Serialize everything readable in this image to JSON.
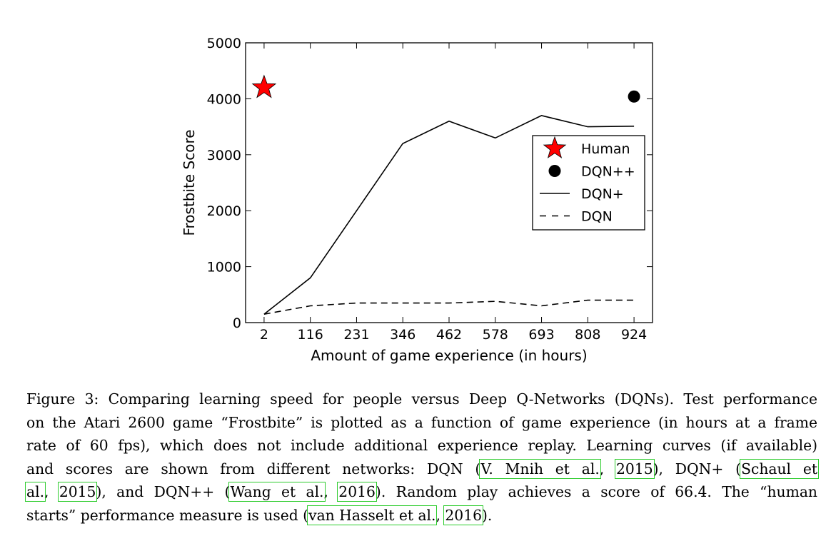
{
  "chart_data": {
    "type": "line",
    "xlabel": "Amount of game experience (in hours)",
    "ylabel": "Frostbite Score",
    "ylim": [
      0,
      5000
    ],
    "xlim": [
      -0.4,
      8.4
    ],
    "categories": [
      "2",
      "116",
      "231",
      "346",
      "462",
      "578",
      "693",
      "808",
      "924"
    ],
    "yticks": [
      0,
      1000,
      2000,
      3000,
      4000,
      5000
    ],
    "series": [
      {
        "name": "Human",
        "style": "star",
        "color": "#ff0000",
        "points": [
          {
            "x": 0,
            "y": 4200
          }
        ]
      },
      {
        "name": "DQN++",
        "style": "dot",
        "color": "#000000",
        "points": [
          {
            "x": 8,
            "y": 4040
          }
        ]
      },
      {
        "name": "DQN+",
        "style": "solid",
        "color": "#000000",
        "values": [
          150,
          800,
          2000,
          3200,
          3600,
          3300,
          3700,
          3500,
          3510
        ]
      },
      {
        "name": "DQN",
        "style": "dashed",
        "color": "#000000",
        "values": [
          150,
          300,
          350,
          350,
          350,
          380,
          300,
          400,
          400
        ]
      }
    ],
    "legend_position": "center-right",
    "grid": false
  },
  "caption": {
    "lines": [
      [
        {
          "t": "Figure 3: Comparing learning speed for people versus Deep Q-Networks (DQNs). Test performance"
        }
      ],
      [
        {
          "t": "on the Atari 2600 game “Frostbite” is plotted as a function of game experience (in hours at a frame"
        }
      ],
      [
        {
          "t": "rate of 60 fps), which does not include additional experience replay. Learning curves (if available)"
        }
      ],
      [
        {
          "t": "and scores are shown from different networks: DQN ("
        },
        {
          "t": "V. Mnih et al.",
          "c": 1
        },
        {
          "t": ", "
        },
        {
          "t": "2015",
          "c": 1
        },
        {
          "t": "), DQN+ ("
        },
        {
          "t": "Schaul et",
          "c": 1
        }
      ],
      [
        {
          "t": "al.",
          "c": 1
        },
        {
          "t": ", "
        },
        {
          "t": "2015",
          "c": 1
        },
        {
          "t": "), and DQN++ ("
        },
        {
          "t": "Wang et al.",
          "c": 1
        },
        {
          "t": ", "
        },
        {
          "t": "2016",
          "c": 1
        },
        {
          "t": "). Random play achieves a score of 66.4. The “human"
        }
      ],
      [
        {
          "t": "starts” performance measure is used ("
        },
        {
          "t": "van Hasselt et al.",
          "c": 1
        },
        {
          "t": ", "
        },
        {
          "t": "2016",
          "c": 1
        },
        {
          "t": ")."
        }
      ]
    ]
  }
}
